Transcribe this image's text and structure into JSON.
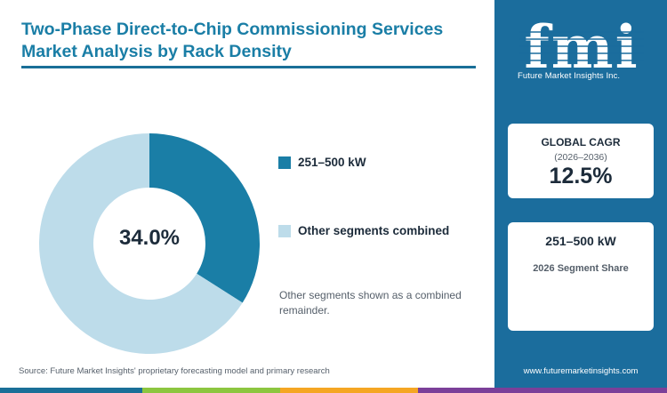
{
  "title": "Two-Phase Direct-to-Chip Commissioning Services Market Analysis by Rack Density",
  "chart_data": {
    "type": "pie",
    "donut": true,
    "center_label": "34.0%",
    "slices": [
      {
        "name": "251–500 kW",
        "value": 34.0,
        "color": "#1a7ea6"
      },
      {
        "name": "Other segments combined",
        "value": 66.0,
        "color": "#bddcea"
      }
    ],
    "legend_position": "right"
  },
  "note": "Other segments shown as a combined remainder.",
  "source": "Source: Future Market Insights' proprietary forecasting model and primary research",
  "sidebar": {
    "logo_letters": "fmi",
    "logo_text": "Future Market Insights Inc.",
    "cagr_card": {
      "label": "GLOBAL CAGR",
      "period": "(2026–2036)",
      "value": "12.5%"
    },
    "segment_card": {
      "title": "251–500 kW",
      "subtitle": "2026 Segment Share"
    },
    "website": "www.futuremarketinsights.com"
  },
  "colors": {
    "primary": "#1a7ea6",
    "light": "#bddcea",
    "sidebar": "#1b6d9d",
    "footer": [
      "#1a6f98",
      "#8cc63f",
      "#f5a623",
      "#7b3f99"
    ]
  }
}
